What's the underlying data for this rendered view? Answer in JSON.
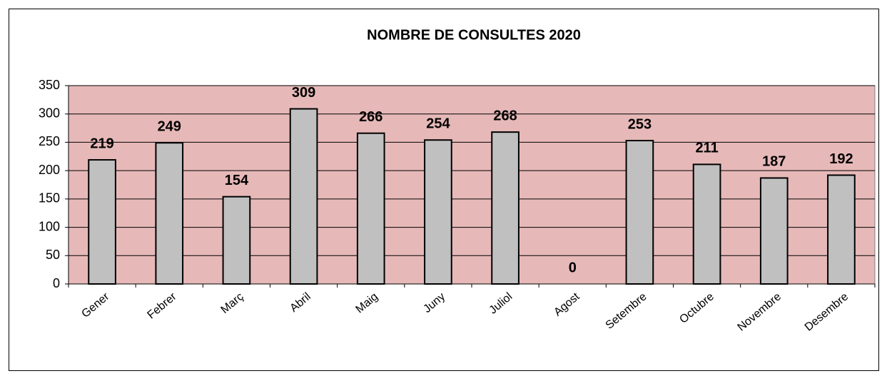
{
  "chart_data": {
    "type": "bar",
    "title": "NOMBRE DE CONSULTES  2020",
    "categories": [
      "Gener",
      "Febrer",
      "Març",
      "Abril",
      "Maig",
      "Juny",
      "Juliol",
      "Agost",
      "Setembre",
      "Octubre",
      "Novembre",
      "Desembre"
    ],
    "values": [
      219,
      249,
      154,
      309,
      266,
      254,
      268,
      0,
      253,
      211,
      187,
      192
    ],
    "color": "#c0c0c0",
    "plot_background": "#e6b9b8",
    "ylim": [
      0,
      350
    ],
    "yticks": [
      0,
      50,
      100,
      150,
      200,
      250,
      300,
      350
    ],
    "grid": true
  }
}
